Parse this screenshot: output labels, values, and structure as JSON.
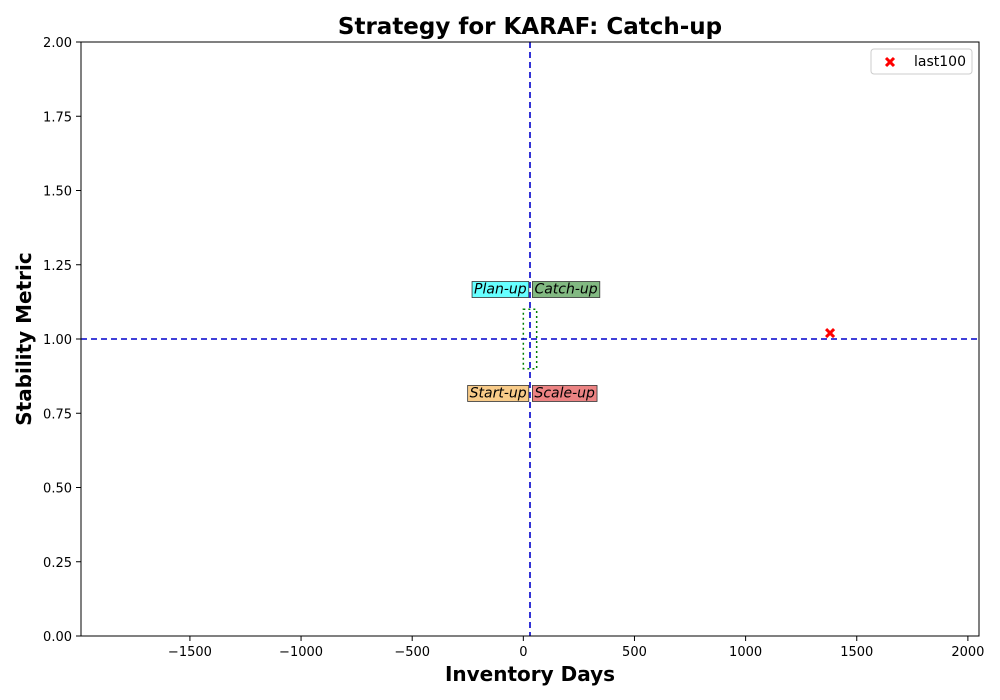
{
  "chart_data": {
    "type": "scatter",
    "title": "Strategy for KARAF: Catch-up",
    "xlabel": "Inventory Days",
    "ylabel": "Stability Metric",
    "xlim": [
      -1990,
      2050
    ],
    "ylim": [
      0,
      2
    ],
    "xticks": [
      -1500,
      -1000,
      -500,
      0,
      500,
      1000,
      1500,
      2000
    ],
    "yticks": [
      0.0,
      0.25,
      0.5,
      0.75,
      1.0,
      1.25,
      1.5,
      1.75,
      2.0
    ],
    "xtick_labels": [
      "−1500",
      "−1000",
      "−500",
      "0",
      "500",
      "1000",
      "1500",
      "2000"
    ],
    "ytick_labels": [
      "0.00",
      "0.25",
      "0.50",
      "0.75",
      "1.00",
      "1.25",
      "1.50",
      "1.75",
      "2.00"
    ],
    "grid": false,
    "reference_lines": {
      "vertical_x": 30,
      "horizontal_y": 1.0,
      "color": "#0000cc",
      "style": "dashed"
    },
    "center_box": {
      "x_range": [
        0,
        60
      ],
      "y_range": [
        0.9,
        1.1
      ],
      "color": "#008000",
      "style": "dotted"
    },
    "quadrant_labels": [
      {
        "text": "Plan-up",
        "x": 15,
        "y": 1.17,
        "align": "right",
        "color": "#00ffff"
      },
      {
        "text": "Catch-up",
        "x": 50,
        "y": 1.17,
        "align": "left",
        "color": "#2e8b2e"
      },
      {
        "text": "Start-up",
        "x": 15,
        "y": 0.82,
        "align": "right",
        "color": "#f4a83a"
      },
      {
        "text": "Scale-up",
        "x": 50,
        "y": 0.82,
        "align": "left",
        "color": "#e03030"
      }
    ],
    "series": [
      {
        "name": "last100",
        "marker": "x",
        "color": "#ff0000",
        "points": [
          {
            "x": 1380,
            "y": 1.02
          }
        ]
      }
    ],
    "legend": {
      "placement": "top-right"
    }
  }
}
